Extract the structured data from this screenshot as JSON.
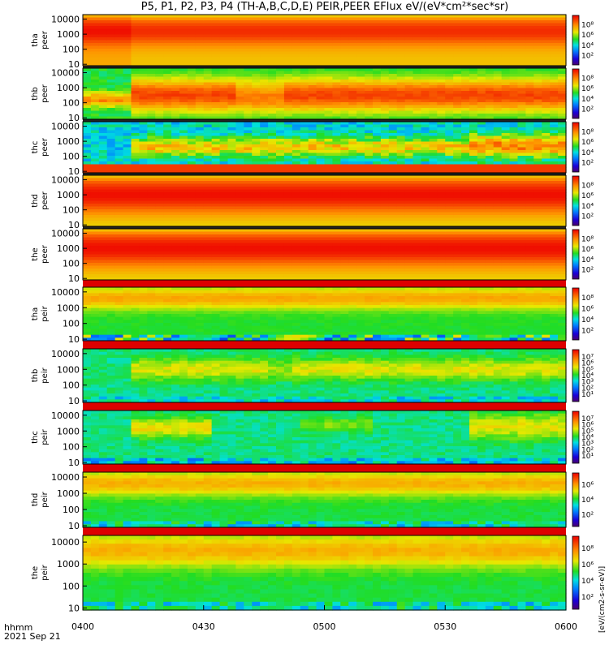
{
  "title": "P5, P1, P2, P3, P4 (TH-A,B,C,D,E) PEIR,PEER EFlux eV/(eV*cm²*sec*sr)",
  "time_axis": {
    "unit_label": "hhmm",
    "date_label": "2021 Sep 21",
    "ticks": [
      "0400",
      "0430",
      "0500",
      "0530",
      "0600"
    ]
  },
  "colorbar_unit_label": "[eV/(cm2-s-sr-eV)]",
  "chart_data": {
    "type": "heatmap",
    "x_range": [
      "04:00",
      "06:00"
    ],
    "y_scale": "log",
    "y_range": [
      8,
      20000
    ],
    "y_ticks": [
      "10",
      "100",
      "1000",
      "10000"
    ],
    "colormap": "rainbow (purple-blue-green-yellow-red)",
    "panels": [
      {
        "probe": "tha",
        "species": "peer",
        "label_top": "tha",
        "label_bottom": "peer",
        "colorbar_ticks": [
          "10²",
          "10⁴",
          "10⁶",
          "10⁸"
        ],
        "intensity": [
          {
            "t": "04:00",
            "e_range": [
              10,
              20000
            ],
            "level": "red core near 1000-3000 eV, orange-yellow elsewhere"
          },
          {
            "t": "04:30-06:00",
            "e_range": [
              10,
              20000
            ],
            "level": "orange-red broad, yellow at high energy"
          }
        ]
      },
      {
        "probe": "thb",
        "species": "peer",
        "label_top": "thb",
        "label_bottom": "peer",
        "colorbar_ticks": [
          "10²",
          "10⁴",
          "10⁶",
          "10⁸"
        ],
        "intensity": [
          {
            "t": "04:00-04:10",
            "level": "green/cyan background, orange band near 100-300 eV"
          },
          {
            "t": "04:10-06:00",
            "level": "orange/red band 30-3000 eV, green above"
          }
        ]
      },
      {
        "probe": "thc",
        "species": "peer",
        "label_top": "thc",
        "label_bottom": "peer",
        "colorbar_ticks": [
          "10²",
          "10⁴",
          "10⁶",
          "10⁸"
        ],
        "intensity": [
          {
            "t": "04:00-04:13",
            "level": "blue/cyan noisy background, red below 30 eV"
          },
          {
            "t": "04:13-05:36",
            "level": "yellow/orange band 100-1000 eV"
          },
          {
            "t": "05:36-06:00",
            "level": "orange/red band 100-2000 eV"
          }
        ]
      },
      {
        "probe": "thd",
        "species": "peer",
        "label_top": "thd",
        "label_bottom": "peer",
        "colorbar_ticks": [
          "10²",
          "10⁴",
          "10⁶",
          "10⁸"
        ],
        "intensity": [
          {
            "t": "04:00-06:00",
            "level": "red core 100-3000 eV, orange/yellow wings"
          }
        ]
      },
      {
        "probe": "the",
        "species": "peer",
        "label_top": "the",
        "label_bottom": "peer",
        "colorbar_ticks": [
          "10²",
          "10⁴",
          "10⁶",
          "10⁸"
        ],
        "intensity": [
          {
            "t": "04:00-06:00",
            "level": "red core 100-3000 eV, orange/yellow wings"
          }
        ]
      },
      {
        "probe": "tha",
        "species": "peir",
        "label_top": "tha",
        "label_bottom": "peir",
        "colorbar_ticks": [
          "10²",
          "10⁴",
          "10⁶",
          "10⁸"
        ],
        "intensity": [
          {
            "t": "04:00-06:00",
            "level": "yellow/orange 1000-10000 eV, green below, dark noise near 10 eV"
          }
        ]
      },
      {
        "probe": "thb",
        "species": "peir",
        "label_top": "thb",
        "label_bottom": "peir",
        "colorbar_ticks": [
          "10¹",
          "10²",
          "10³",
          "10⁴",
          "10⁵",
          "10⁶",
          "10⁷"
        ],
        "intensity": [
          {
            "t": "04:00-04:12",
            "level": "green/cyan"
          },
          {
            "t": "04:12-06:00",
            "level": "yellow band 300-5000 eV over green background"
          }
        ]
      },
      {
        "probe": "thc",
        "species": "peir",
        "label_top": "thc",
        "label_bottom": "peir",
        "colorbar_ticks": [
          "10¹",
          "10²",
          "10³",
          "10⁴",
          "10⁵",
          "10⁶",
          "10⁷"
        ],
        "intensity": [
          {
            "t": "04:00-04:10",
            "level": "green/cyan"
          },
          {
            "t": "04:10-04:27",
            "level": "yellow patch 500-5000 eV"
          },
          {
            "t": "05:36-06:00",
            "level": "yellow band 500-10000 eV"
          }
        ]
      },
      {
        "probe": "thd",
        "species": "peir",
        "label_top": "thd",
        "label_bottom": "peir",
        "colorbar_ticks": [
          "10²",
          "10⁴",
          "10⁶"
        ],
        "intensity": [
          {
            "t": "04:00-06:00",
            "level": "yellow/orange 1000-10000 eV, green below"
          }
        ]
      },
      {
        "probe": "the",
        "species": "peir",
        "label_top": "the",
        "label_bottom": "peir",
        "colorbar_ticks": [
          "10²",
          "10⁴",
          "10⁶",
          "10⁸"
        ],
        "intensity": [
          {
            "t": "04:00-06:00",
            "level": "yellow/orange 1000-10000 eV, green below"
          }
        ]
      }
    ]
  }
}
